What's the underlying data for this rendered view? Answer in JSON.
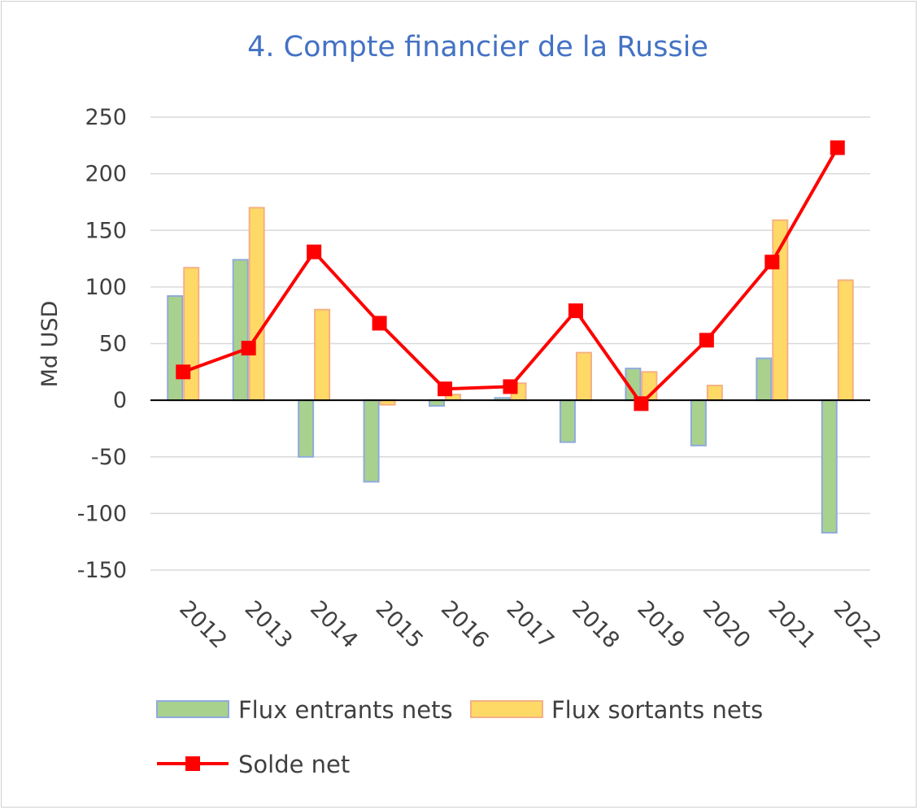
{
  "chart_data": {
    "type": "bar",
    "title": "4. Compte financier de la Russie",
    "xlabel": "",
    "ylabel": "Md USD",
    "ylim": [
      -150,
      250
    ],
    "yticks": [
      250,
      200,
      150,
      100,
      50,
      0,
      -50,
      -100,
      -150
    ],
    "categories": [
      "2012",
      "2013",
      "2014",
      "2015",
      "2016",
      "2017",
      "2018",
      "2019",
      "2020",
      "2021",
      "2022"
    ],
    "series": [
      {
        "name": "Flux entrants nets",
        "type": "bar",
        "color": "#a9d18e",
        "border": "#8faadc",
        "values": [
          92,
          124,
          -50,
          -72,
          -5,
          2,
          -37,
          28,
          -40,
          37,
          -117
        ]
      },
      {
        "name": "Flux sortants nets",
        "type": "bar",
        "color": "#ffd966",
        "border": "#f4b183",
        "values": [
          117,
          170,
          80,
          -4,
          5,
          15,
          42,
          25,
          13,
          159,
          106
        ]
      },
      {
        "name": "Solde net",
        "type": "line",
        "color": "#ff0000",
        "values": [
          25,
          46,
          131,
          68,
          10,
          12,
          79,
          -3,
          53,
          122,
          223
        ]
      }
    ],
    "grid": true,
    "legend_position": "bottom"
  }
}
